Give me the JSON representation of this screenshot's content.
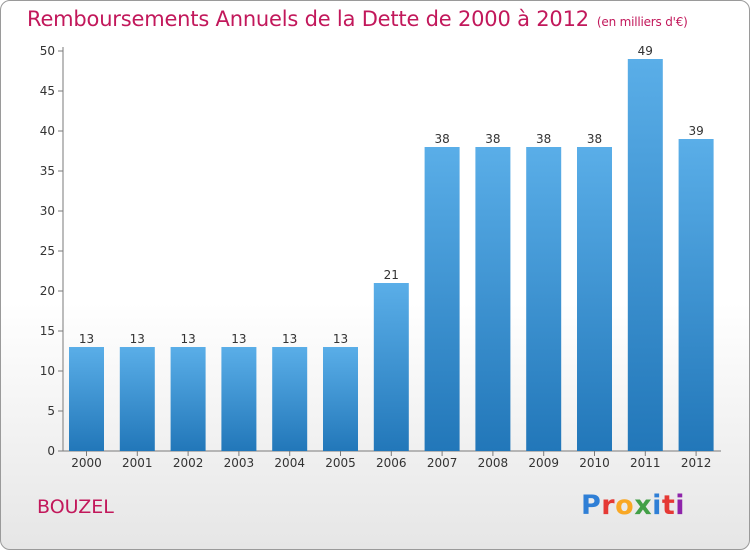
{
  "header": {
    "title": "Remboursements Annuels de la Dette de 2000 à 2012",
    "subtitle": "(en milliers d'€)"
  },
  "commune": "BOUZEL",
  "logo": {
    "text": "Proxiti",
    "colors": [
      "#2f7fd6",
      "#e53935",
      "#f9a825",
      "#43a047",
      "#2f7fd6",
      "#e53935",
      "#8e24aa"
    ]
  },
  "chart_data": {
    "type": "bar",
    "title": "Remboursements Annuels de la Dette de 2000 à 2012",
    "subtitle": "(en milliers d'€)",
    "categories": [
      "2000",
      "2001",
      "2002",
      "2003",
      "2004",
      "2005",
      "2006",
      "2007",
      "2008",
      "2009",
      "2010",
      "2011",
      "2012"
    ],
    "values": [
      13,
      13,
      13,
      13,
      13,
      13,
      21,
      38,
      38,
      38,
      38,
      49,
      39
    ],
    "ylim": [
      0,
      50
    ],
    "yticks": [
      0,
      5,
      10,
      15,
      20,
      25,
      30,
      35,
      40,
      45,
      50
    ],
    "grid": false,
    "bar_color_top": "#5aaee8",
    "bar_color_bottom": "#2277b9"
  }
}
